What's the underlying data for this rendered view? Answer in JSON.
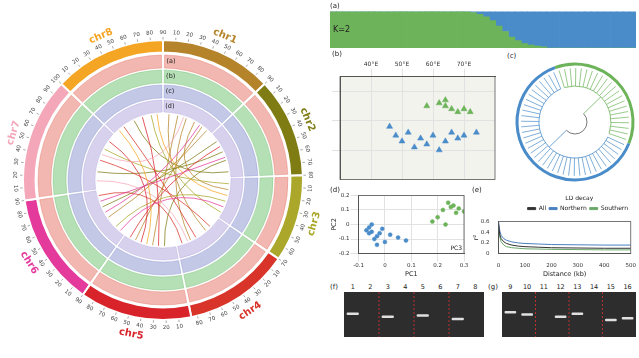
{
  "chart_data": [
    {
      "type": "doughnut",
      "categories": [
        "chr1",
        "chr2",
        "chr3",
        "chr4",
        "chr5",
        "chr6",
        "chr7",
        "chr8"
      ],
      "values": [
        90,
        80,
        70,
        85,
        90,
        90,
        100,
        90
      ],
      "colors": [
        "#b5842a",
        "#7f7c14",
        "#aaa72a",
        "#d8342a",
        "#d9232a",
        "#e33a9c",
        "#f4a7b9",
        "#f5a524"
      ],
      "chromosome_ticks": [
        [
          10,
          20,
          30,
          40,
          50,
          60,
          70,
          80,
          90
        ],
        [
          10,
          20,
          30,
          40,
          50,
          60,
          70,
          80
        ],
        [
          10,
          20,
          30,
          40,
          50,
          60,
          70
        ],
        [
          10,
          20,
          30,
          40,
          50,
          60,
          70,
          80
        ],
        [
          10,
          20,
          30,
          40,
          50,
          60,
          70,
          80,
          90
        ],
        [
          10,
          20,
          30,
          40,
          50,
          60,
          70,
          80,
          90
        ],
        [
          10,
          20,
          30,
          40,
          50,
          60,
          70,
          80,
          90,
          100
        ],
        [
          10,
          20,
          30,
          40,
          50,
          60,
          70,
          80,
          90
        ]
      ],
      "tracks": [
        {
          "label": "(a)",
          "color": "#e0604f"
        },
        {
          "label": "(b)",
          "color": "#5cb85c"
        },
        {
          "label": "(c)",
          "color": "#7b86c9"
        },
        {
          "label": "(d)",
          "color": "#a898d8"
        }
      ],
      "links": [
        {
          "from": "chr1",
          "from_pos": 10,
          "to": "chr4",
          "to_pos": 30
        },
        {
          "from": "chr1",
          "from_pos": 25,
          "to": "chr5",
          "to_pos": 40
        },
        {
          "from": "chr1",
          "from_pos": 40,
          "to": "chr4",
          "to_pos": 60
        },
        {
          "from": "chr1",
          "from_pos": 55,
          "to": "chr3",
          "to_pos": 20
        },
        {
          "from": "chr1",
          "from_pos": 70,
          "to": "chr5",
          "to_pos": 70
        },
        {
          "from": "chr1",
          "from_pos": 80,
          "to": "chr6",
          "to_pos": 40
        },
        {
          "from": "chr2",
          "from_pos": 15,
          "to": "chr6",
          "to_pos": 60
        },
        {
          "from": "chr2",
          "from_pos": 35,
          "to": "chr7",
          "to_pos": 30
        },
        {
          "from": "chr2",
          "from_pos": 50,
          "to": "chr5",
          "to_pos": 20
        },
        {
          "from": "chr2",
          "from_pos": 70,
          "to": "chr8",
          "to_pos": 40
        },
        {
          "from": "chr3",
          "from_pos": 10,
          "to": "chr7",
          "to_pos": 70
        },
        {
          "from": "chr3",
          "from_pos": 40,
          "to": "chr6",
          "to_pos": 20
        },
        {
          "from": "chr3",
          "from_pos": 60,
          "to": "chr8",
          "to_pos": 70
        },
        {
          "from": "chr4",
          "from_pos": 20,
          "to": "chr7",
          "to_pos": 50
        },
        {
          "from": "chr4",
          "from_pos": 50,
          "to": "chr8",
          "to_pos": 20
        },
        {
          "from": "chr4",
          "from_pos": 75,
          "to": "chr6",
          "to_pos": 80
        },
        {
          "from": "chr5",
          "from_pos": 30,
          "to": "chr8",
          "to_pos": 55
        },
        {
          "from": "chr5",
          "from_pos": 60,
          "to": "chr7",
          "to_pos": 85
        },
        {
          "from": "chr5",
          "from_pos": 80,
          "to": "chr2",
          "to_pos": 25
        },
        {
          "from": "chr6",
          "from_pos": 10,
          "to": "chr3",
          "to_pos": 50
        },
        {
          "from": "chr6",
          "from_pos": 50,
          "to": "chr1",
          "to_pos": 65
        },
        {
          "from": "chr6",
          "from_pos": 70,
          "to": "chr2",
          "to_pos": 45
        },
        {
          "from": "chr7",
          "from_pos": 15,
          "to": "chr4",
          "to_pos": 65
        },
        {
          "from": "chr7",
          "from_pos": 60,
          "to": "chr1",
          "to_pos": 35
        },
        {
          "from": "chr8",
          "from_pos": 10,
          "to": "chr5",
          "to_pos": 50
        },
        {
          "from": "chr8",
          "from_pos": 80,
          "to": "chr3",
          "to_pos": 30
        }
      ]
    },
    {
      "type": "bar",
      "title": "(a)",
      "ylabel": "K=2",
      "categories": [
        null,
        null,
        null,
        null,
        null,
        null,
        null,
        null,
        null,
        null,
        null,
        null,
        null,
        null,
        null,
        null,
        null,
        null,
        null,
        null,
        null,
        null,
        null,
        null,
        null,
        null,
        null,
        null,
        null,
        null,
        null,
        null,
        null,
        null,
        null,
        null,
        null,
        null,
        null,
        null,
        null,
        null,
        null,
        null,
        null,
        null,
        null,
        null
      ],
      "stacked": true,
      "ylim": [
        0,
        1
      ],
      "tick_labels": false,
      "series": [
        {
          "color": "#6db35a",
          "values": [
            1,
            1,
            1,
            1,
            1,
            1,
            1,
            1,
            1,
            1,
            1,
            1,
            1,
            1,
            1,
            1,
            1,
            1,
            1,
            1,
            1,
            1,
            0.97,
            0.92,
            0.85,
            0.75,
            0.6,
            0.45,
            0.3,
            0.2,
            0.12,
            0.08,
            0.05,
            0.03,
            0,
            0,
            0,
            0,
            0,
            0,
            0,
            0,
            0,
            0,
            0,
            0,
            0,
            0
          ]
        },
        {
          "color": "#4a8cc9",
          "values": [
            0,
            0,
            0,
            0,
            0,
            0,
            0,
            0,
            0,
            0,
            0,
            0,
            0,
            0,
            0,
            0,
            0,
            0,
            0,
            0,
            0,
            0,
            0.03,
            0.08,
            0.15,
            0.25,
            0.4,
            0.55,
            0.7,
            0.8,
            0.88,
            0.92,
            0.95,
            0.97,
            1,
            1,
            1,
            1,
            1,
            1,
            1,
            1,
            1,
            1,
            1,
            1,
            1,
            1
          ]
        }
      ]
    },
    {
      "type": "scatter",
      "title": "(b)",
      "xlim": [
        30,
        80
      ],
      "xticks": [
        {
          "value": 40,
          "label": "40°E"
        },
        {
          "value": 50,
          "label": "50°E"
        },
        {
          "value": 60,
          "label": "60°E"
        },
        {
          "value": 70,
          "label": "70°E"
        }
      ],
      "ylim": [
        20,
        55
      ],
      "yticks": [
        30,
        40,
        50
      ],
      "grid": true,
      "tick_labels": "x",
      "series": [
        {
          "color": "#6db35a",
          "marker": "triangle",
          "x": [
            62,
            64,
            66,
            68,
            70,
            72,
            64,
            58
          ],
          "y": [
            46,
            45,
            44,
            43,
            44,
            43,
            47,
            45
          ]
        },
        {
          "color": "#4a8cc9",
          "marker": "triangle",
          "x": [
            48,
            50,
            52,
            54,
            56,
            58,
            60,
            62,
            64,
            66,
            68,
            70,
            74,
            46
          ],
          "y": [
            35,
            33,
            36,
            31,
            34,
            32,
            35,
            30,
            33,
            36,
            34,
            35,
            36,
            38
          ]
        }
      ]
    },
    {
      "type": "scatter",
      "title": "(d)",
      "xlabel": "PC1",
      "ylabel": "PC2",
      "zlabel": "PC3",
      "xlim": [
        -0.1,
        0.3
      ],
      "xticks": [
        -0.1,
        0,
        0.1,
        0.2,
        0.3
      ],
      "ylim": [
        -0.2,
        0.2
      ],
      "yticks": [
        -0.2,
        -0.1,
        0,
        0.1,
        0.2
      ],
      "grid": true,
      "series": [
        {
          "color": "#6db35a",
          "marker": "circle",
          "x": [
            0.22,
            0.25,
            0.27,
            0.24,
            0.28,
            0.2,
            0.23,
            0.26,
            0.18,
            0.3
          ],
          "y": [
            0.1,
            0.12,
            0.08,
            0.15,
            0.11,
            0.05,
            0,
            0.13,
            0.02,
            0.09
          ]
        },
        {
          "color": "#4a8cc9",
          "marker": "circle",
          "x": [
            -0.05,
            -0.03,
            -0.06,
            -0.04,
            -0.02,
            -0.07,
            0,
            0.02,
            -0.05,
            -0.01,
            0.05,
            0.08,
            -0.03,
            -0.06
          ],
          "y": [
            -0.05,
            -0.08,
            -0.02,
            -0.1,
            -0.06,
            -0.04,
            -0.12,
            -0.07,
            0,
            -0.03,
            -0.09,
            -0.11,
            -0.14,
            -0.06
          ]
        }
      ]
    },
    {
      "type": "line",
      "title": "(e)",
      "legend_title": "LD decay",
      "legend": "top-right",
      "xlabel": "Distance (kb)",
      "ylabel": "r²",
      "x": [
        0,
        5,
        10,
        20,
        30,
        50,
        75,
        100,
        150,
        200,
        300,
        400,
        500
      ],
      "xlim": [
        0,
        500
      ],
      "xticks": [
        0,
        100,
        200,
        300,
        400,
        500
      ],
      "ylim": [
        0,
        0.6
      ],
      "yticks": [
        0,
        0.2,
        0.4,
        0.6
      ],
      "series": [
        {
          "name": "All",
          "color": "#333333",
          "values": [
            0.55,
            0.35,
            0.28,
            0.22,
            0.19,
            0.16,
            0.14,
            0.13,
            0.12,
            0.11,
            0.105,
            0.1,
            0.1
          ]
        },
        {
          "name": "Northern",
          "color": "#4a7fc1",
          "values": [
            0.6,
            0.42,
            0.34,
            0.28,
            0.25,
            0.22,
            0.2,
            0.19,
            0.18,
            0.17,
            0.165,
            0.16,
            0.16
          ]
        },
        {
          "name": "Southern",
          "color": "#6aa86a",
          "values": [
            0.5,
            0.3,
            0.22,
            0.16,
            0.13,
            0.11,
            0.1,
            0.09,
            0.085,
            0.08,
            0.075,
            0.07,
            0.07
          ]
        }
      ]
    }
  ],
  "tree": {
    "title": "(c)",
    "clades": [
      {
        "color": "#6db35a",
        "leaves": 22
      },
      {
        "color": "#4a8cc9",
        "leaves": 38
      }
    ]
  },
  "gels": [
    {
      "title": "(f)",
      "lanes": [
        "1",
        "2",
        "3",
        "4",
        "5",
        "6",
        "7",
        "8"
      ],
      "bands": [
        [
          48
        ],
        [],
        [
          55
        ],
        [],
        [
          52
        ],
        [],
        [
          60
        ],
        []
      ]
    },
    {
      "title": "(g)",
      "lanes": [
        "9",
        "10",
        "11",
        "12",
        "13",
        "14",
        "15",
        "16"
      ],
      "bands": [
        [
          45
        ],
        [
          50
        ],
        [],
        [
          55
        ],
        [
          48
        ],
        [],
        [
          62
        ],
        [
          58
        ]
      ]
    }
  ]
}
